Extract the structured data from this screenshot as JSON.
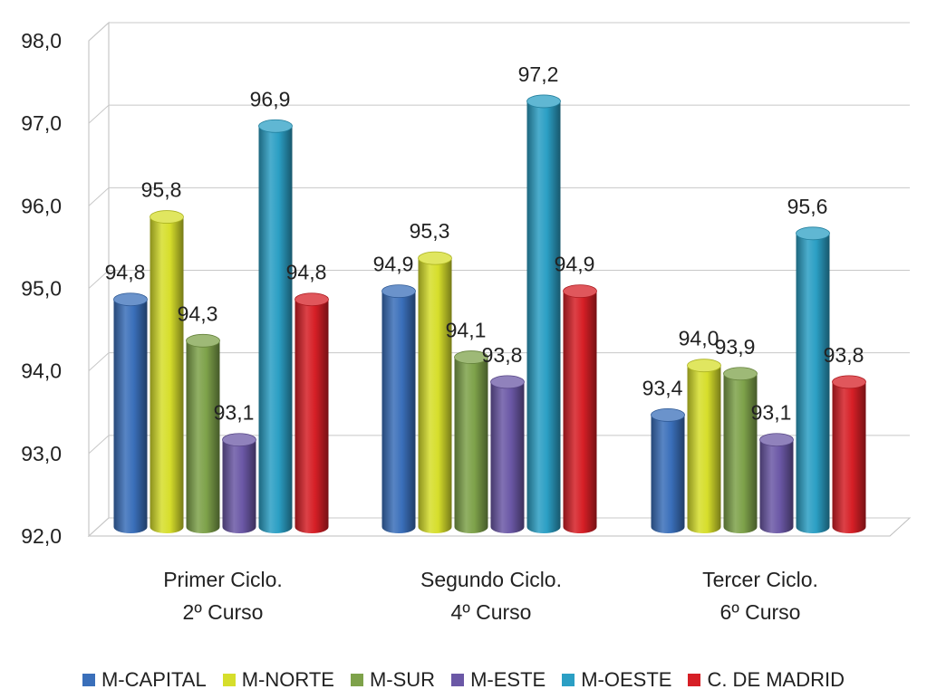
{
  "chart_data": {
    "type": "bar",
    "style": "3d-cylinder",
    "categories": [
      [
        "Primer Ciclo.",
        "2º Curso"
      ],
      [
        "Segundo Ciclo.",
        "4º Curso"
      ],
      [
        "Tercer Ciclo.",
        "6º Curso"
      ]
    ],
    "series": [
      {
        "name": "M-CAPITAL",
        "color": "#3a6fba",
        "values": [
          94.8,
          94.9,
          93.4
        ],
        "labels": [
          "94,8",
          "94,9",
          "93,4"
        ]
      },
      {
        "name": "M-NORTE",
        "color": "#d6de2b",
        "values": [
          95.8,
          95.3,
          94.0
        ],
        "labels": [
          "95,8",
          "95,3",
          "94,0"
        ]
      },
      {
        "name": "M-SUR",
        "color": "#7ea24a",
        "values": [
          94.3,
          94.1,
          93.9
        ],
        "labels": [
          "94,3",
          "94,1",
          "93,9"
        ]
      },
      {
        "name": "M-ESTE",
        "color": "#6b58a6",
        "values": [
          93.1,
          93.8,
          93.1
        ],
        "labels": [
          "93,1",
          "93,8",
          "93,1"
        ]
      },
      {
        "name": "M-OESTE",
        "color": "#2b9fc4",
        "values": [
          96.9,
          97.2,
          95.6
        ],
        "labels": [
          "96,9",
          "97,2",
          "95,6"
        ]
      },
      {
        "name": "C. DE MADRID",
        "color": "#d61f26",
        "values": [
          94.8,
          94.9,
          93.8
        ],
        "labels": [
          "94,8",
          "94,9",
          "93,8"
        ]
      }
    ],
    "ylim": [
      92.0,
      98.0
    ],
    "yticks": [
      92.0,
      93.0,
      94.0,
      95.0,
      96.0,
      97.0,
      98.0
    ],
    "ytick_labels": [
      "92,0",
      "93,0",
      "94,0",
      "95,0",
      "96,0",
      "97,0",
      "98,0"
    ],
    "grid": true,
    "legend_position": "bottom"
  }
}
